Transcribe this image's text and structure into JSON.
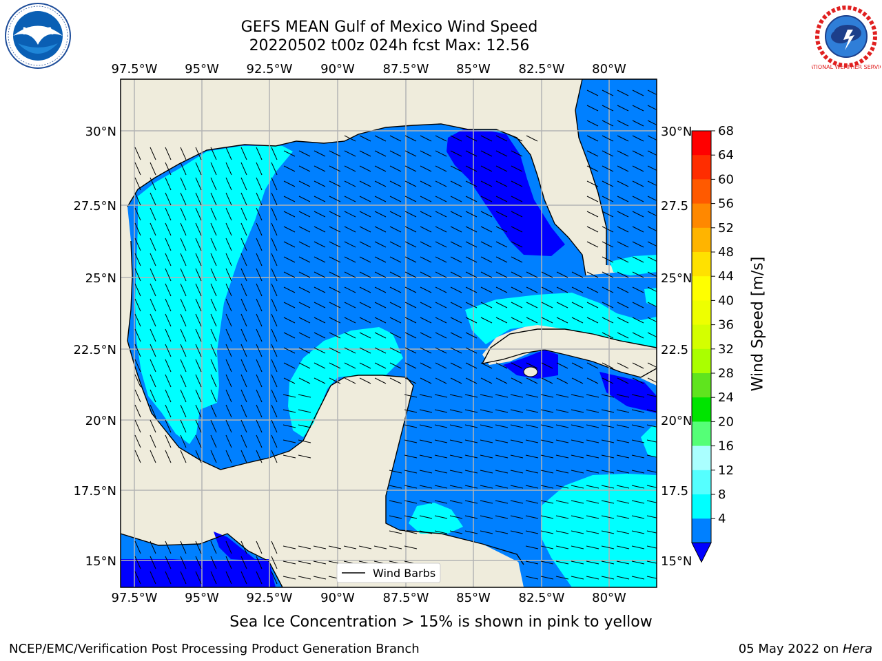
{
  "header": {
    "title_line1": "GEFS MEAN Gulf of Mexico Wind Speed",
    "title_line2": "20220502 t00z 024h fcst   Max: 12.56"
  },
  "logos": {
    "left": "NOAA",
    "right": "NATIONAL WEATHER SERVICE"
  },
  "map": {
    "lon_labels": [
      "97.5°W",
      "95°W",
      "92.5°W",
      "90°W",
      "87.5°W",
      "85°W",
      "82.5°W",
      "80°W"
    ],
    "lat_labels_left": [
      "30°N",
      "27.5°N",
      "25°N",
      "22.5°N",
      "20°N",
      "17.5°N",
      "15°N"
    ],
    "lat_labels_right": [
      "30°N",
      "27.5",
      "25°N",
      "22.5",
      "20°N",
      "17.5",
      "15°N"
    ],
    "legend_label": "Wind Barbs",
    "colors": {
      "land": "#efecdc",
      "speed_4_8": "#0080ff",
      "speed_8_12": "#00ffff",
      "speed_lt4": "#0000ff",
      "grid": "#b3b3b3"
    }
  },
  "colorbar": {
    "label": "Wind Speed [m/s]",
    "ticks": [
      "68",
      "64",
      "60",
      "56",
      "52",
      "48",
      "44",
      "40",
      "36",
      "32",
      "28",
      "24",
      "20",
      "16",
      "12",
      "8",
      "4"
    ],
    "colors": [
      "#ff0000",
      "#ff2d00",
      "#ff5a00",
      "#ff8800",
      "#ffb400",
      "#ffe100",
      "#ffff00",
      "#eeff00",
      "#d4ff00",
      "#aaff00",
      "#5fe41e",
      "#00e400",
      "#55ff77",
      "#aaffff",
      "#55ffff",
      "#00ffff",
      "#0080ff"
    ],
    "under_color": "#0000ff"
  },
  "footer": {
    "ice_note": "Sea Ice Concentration > 15% is shown in pink to yellow",
    "left": "NCEP/EMC/Verification Post Processing Product Generation Branch",
    "right_date": "05 May 2022 on ",
    "right_machine": "Hera"
  }
}
